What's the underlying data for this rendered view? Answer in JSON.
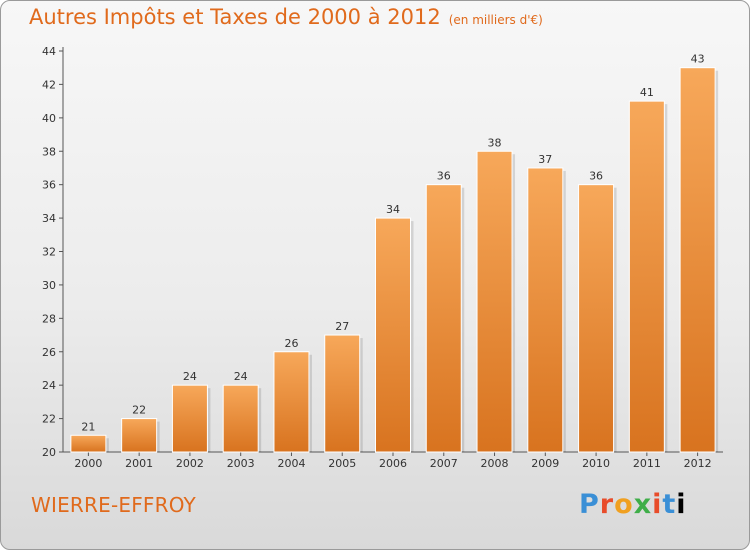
{
  "title": "Autres Impôts et Taxes de 2000 à 2012",
  "subtitle": "(en milliers d'€)",
  "commune": "WIERRE-EFFROY",
  "logo": {
    "letters": [
      "P",
      "r",
      "o",
      "x",
      "i",
      "t",
      "i"
    ],
    "text": "Proxiti"
  },
  "colors": {
    "accent": "#e06a1c",
    "bar_top": "#f7a85a",
    "bar_bottom": "#d8731f"
  },
  "chart_data": {
    "type": "bar",
    "title": "Autres Impôts et Taxes de 2000 à 2012",
    "subtitle": "(en milliers d'€)",
    "xlabel": "",
    "ylabel": "",
    "categories": [
      "2000",
      "2001",
      "2002",
      "2003",
      "2004",
      "2005",
      "2006",
      "2007",
      "2008",
      "2009",
      "2010",
      "2011",
      "2012"
    ],
    "values": [
      21,
      22,
      24,
      24,
      26,
      27,
      34,
      36,
      38,
      37,
      36,
      41,
      43
    ],
    "ylim": [
      20,
      44
    ],
    "yticks": [
      "20",
      "22",
      "24",
      "26",
      "28",
      "30",
      "32",
      "34",
      "36",
      "38",
      "40",
      "42",
      "44"
    ],
    "grid": false,
    "legend": "none"
  }
}
